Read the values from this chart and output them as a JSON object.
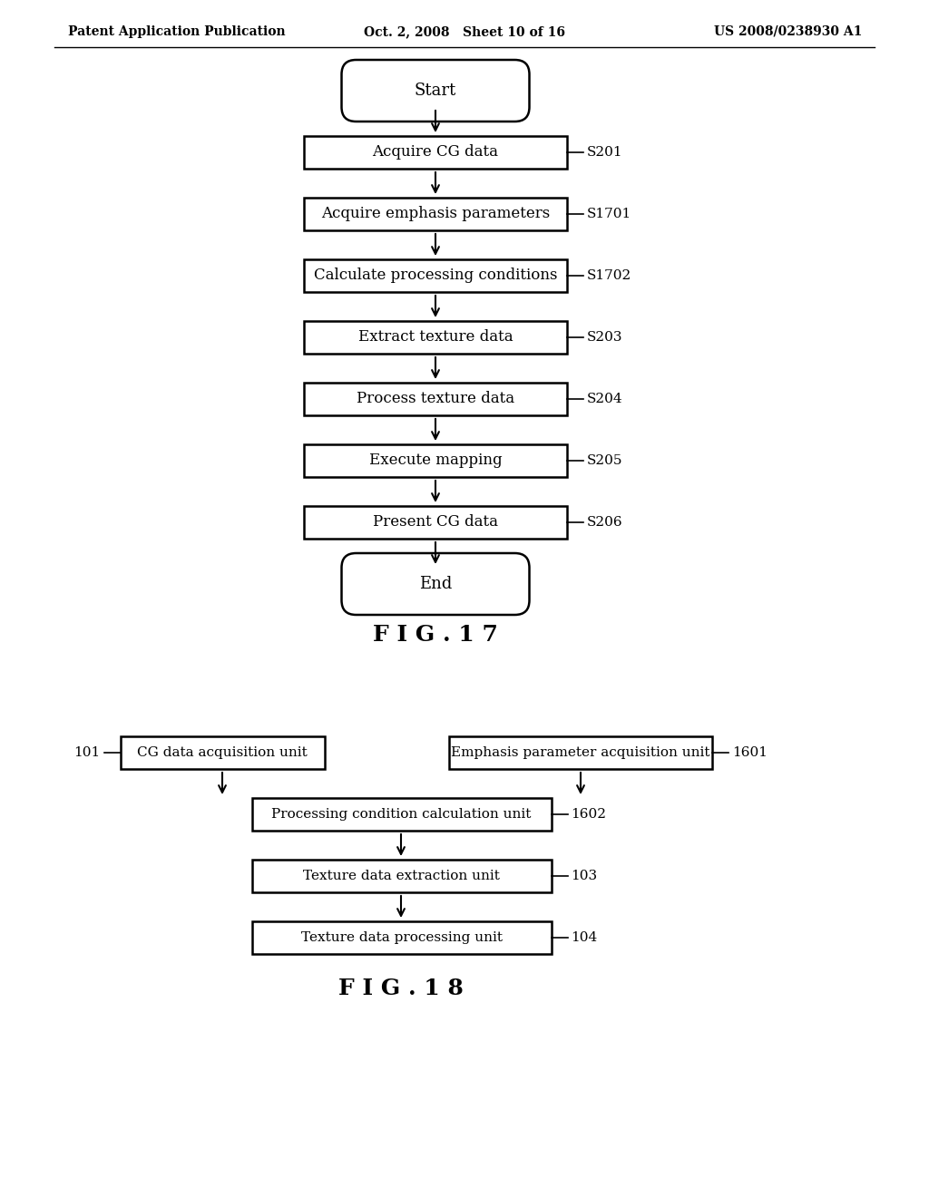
{
  "bg_color": "#ffffff",
  "header_left": "Patent Application Publication",
  "header_center": "Oct. 2, 2008   Sheet 10 of 16",
  "header_right": "US 2008/0238930 A1",
  "fig17_title": "F I G . 1 7",
  "fig17_steps": [
    {
      "label": "Start",
      "type": "oval",
      "tag": ""
    },
    {
      "label": "Acquire CG data",
      "type": "rect",
      "tag": "S201"
    },
    {
      "label": "Acquire emphasis parameters",
      "type": "rect",
      "tag": "S1701"
    },
    {
      "label": "Calculate processing conditions",
      "type": "rect",
      "tag": "S1702"
    },
    {
      "label": "Extract texture data",
      "type": "rect",
      "tag": "S203"
    },
    {
      "label": "Process texture data",
      "type": "rect",
      "tag": "S204"
    },
    {
      "label": "Execute mapping",
      "type": "rect",
      "tag": "S205"
    },
    {
      "label": "Present CG data",
      "type": "rect",
      "tag": "S206"
    },
    {
      "label": "End",
      "type": "oval",
      "tag": ""
    }
  ],
  "fig18_title": "F I G . 1 8",
  "fig18_top_left": {
    "label": "CG data acquisition unit",
    "tag": "101"
  },
  "fig18_top_right": {
    "label": "Emphasis parameter acquisition unit",
    "tag": "1601"
  },
  "fig18_steps": [
    {
      "label": "Processing condition calculation unit",
      "tag": "1602"
    },
    {
      "label": "Texture data extraction unit",
      "tag": "103"
    },
    {
      "label": "Texture data processing unit",
      "tag": "104"
    }
  ]
}
